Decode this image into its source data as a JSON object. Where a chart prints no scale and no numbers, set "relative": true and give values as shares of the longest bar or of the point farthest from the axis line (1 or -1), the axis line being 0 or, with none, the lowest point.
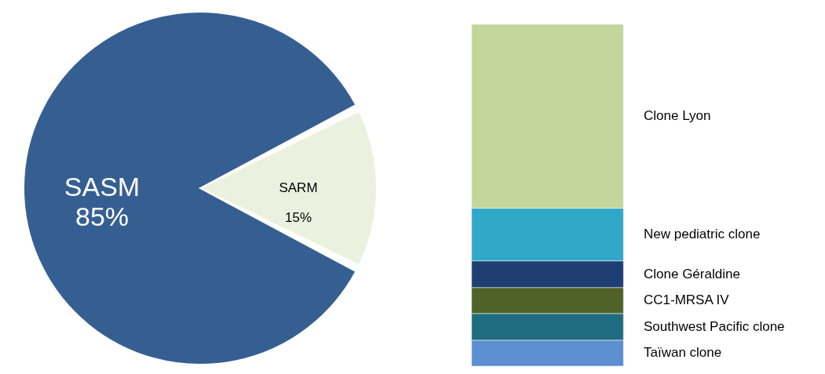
{
  "chart_data": [
    {
      "type": "pie",
      "categories": [
        "SARM",
        "SASM"
      ],
      "values": [
        15,
        85
      ],
      "colors": [
        "#ebf1de",
        "#365f91"
      ],
      "value_labels": [
        "15%",
        "85%"
      ]
    },
    {
      "type": "bar",
      "stacked": true,
      "relative": true,
      "categories": [
        null
      ],
      "series": [
        {
          "name": "Taïwan clone",
          "color": "#5b8fd0",
          "values": [
            0.076
          ]
        },
        {
          "name": "Southwest Pacific clone",
          "color": "#1f6b80",
          "values": [
            0.078
          ]
        },
        {
          "name": "CC1-MRSA IV",
          "color": "#4f6228",
          "values": [
            0.076
          ]
        },
        {
          "name": "Clone Géraldine",
          "color": "#1f3f73",
          "values": [
            0.078
          ]
        },
        {
          "name": "New pediatric clone",
          "color": "#31a8c8",
          "values": [
            0.154
          ]
        },
        {
          "name": "Clone Lyon",
          "color": "#c3d69b",
          "values": [
            0.538
          ]
        }
      ]
    }
  ]
}
